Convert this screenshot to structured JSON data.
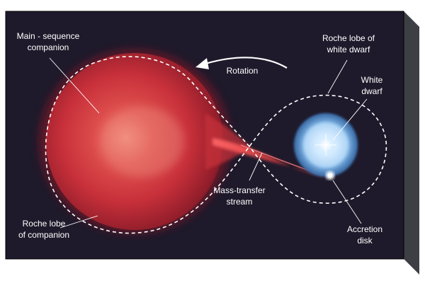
{
  "diagram": {
    "title_hidden": "",
    "labels": {
      "main_sequence_line1": "Main - sequence",
      "main_sequence_line2": "companion",
      "rotation": "Rotation",
      "roche_wd_line1": "Roche lobe of",
      "roche_wd_line2": "white dwarf",
      "white_dwarf_line1": "White",
      "white_dwarf_line2": "dwarf",
      "mass_transfer_line1": "Mass-transfer",
      "mass_transfer_line2": "stream",
      "roche_comp_line1": "Roche lobe",
      "roche_comp_line2": "of companion",
      "accretion_line1": "Accretion",
      "accretion_line2": "disk"
    },
    "colors": {
      "panel": "#1e1a2b",
      "panel_side": "#3d3f44",
      "panel_top": "#55575c",
      "companion": "#c8303a",
      "white_dwarf": "#bfe2ff",
      "lobe_outline": "#ffffff",
      "label_text": "#ffffff"
    }
  }
}
